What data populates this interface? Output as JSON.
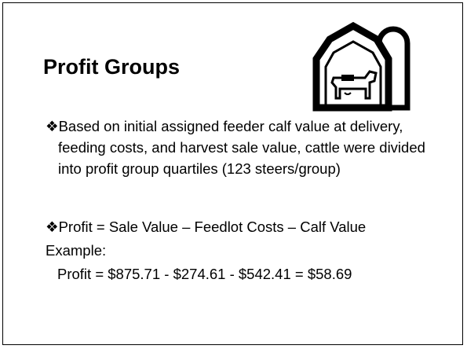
{
  "slide": {
    "title": "Profit Groups",
    "bullets": [
      "❖Based on initial assigned feeder calf value at delivery, feeding costs, and harvest sale value, cattle were divided into profit group quartiles (123 steers/group)",
      "❖Profit = Sale Value – Feedlot Costs – Calf Value"
    ],
    "example_label": "Example:",
    "example_formula": "Profit = $875.71 - $274.61 - $542.41 = $58.69"
  }
}
